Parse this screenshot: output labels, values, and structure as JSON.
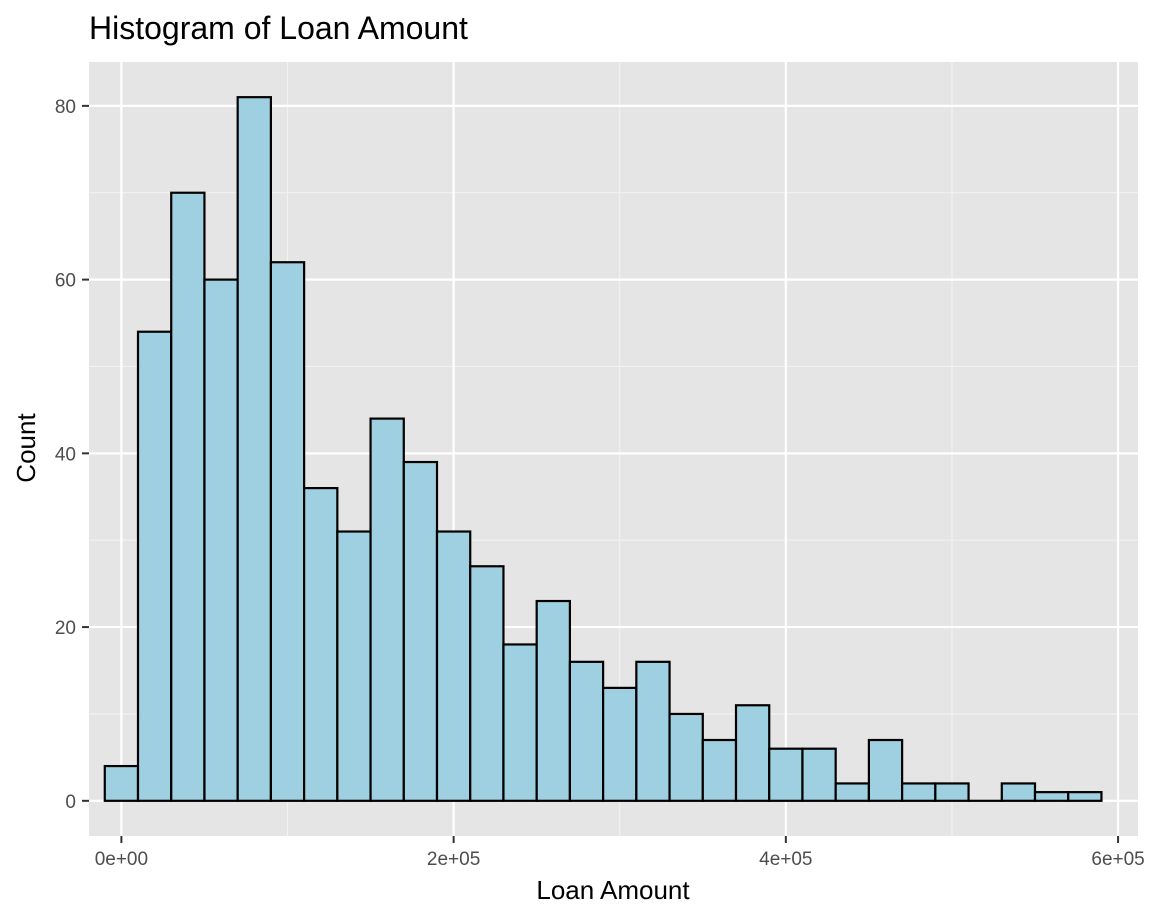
{
  "chart_data": {
    "type": "bar",
    "title": "Histogram of Loan Amount",
    "xlabel": "Loan Amount",
    "ylabel": "Count",
    "xlim": [
      -19500,
      612000
    ],
    "ylim": [
      -4.05,
      85.05
    ],
    "x_ticks": [
      {
        "value": 0,
        "label": "0e+00"
      },
      {
        "value": 200000,
        "label": "2e+05"
      },
      {
        "value": 400000,
        "label": "4e+05"
      },
      {
        "value": 600000,
        "label": "6e+05"
      }
    ],
    "y_ticks": [
      {
        "value": 0,
        "label": "0"
      },
      {
        "value": 20,
        "label": "20"
      },
      {
        "value": 40,
        "label": "40"
      },
      {
        "value": 60,
        "label": "60"
      },
      {
        "value": 80,
        "label": "80"
      }
    ],
    "x_minor_ticks": [
      100000,
      300000,
      500000
    ],
    "y_minor_ticks": [
      10,
      30,
      50,
      70
    ],
    "bin_width": 20000,
    "bins": [
      {
        "start": -10000,
        "end": 10000,
        "count": 4
      },
      {
        "start": 10000,
        "end": 30000,
        "count": 54
      },
      {
        "start": 30000,
        "end": 50000,
        "count": 70
      },
      {
        "start": 50000,
        "end": 70000,
        "count": 60
      },
      {
        "start": 70000,
        "end": 90000,
        "count": 81
      },
      {
        "start": 90000,
        "end": 110000,
        "count": 62
      },
      {
        "start": 110000,
        "end": 130000,
        "count": 36
      },
      {
        "start": 130000,
        "end": 150000,
        "count": 31
      },
      {
        "start": 150000,
        "end": 170000,
        "count": 44
      },
      {
        "start": 170000,
        "end": 190000,
        "count": 39
      },
      {
        "start": 190000,
        "end": 210000,
        "count": 31
      },
      {
        "start": 210000,
        "end": 230000,
        "count": 27
      },
      {
        "start": 230000,
        "end": 250000,
        "count": 18
      },
      {
        "start": 250000,
        "end": 270000,
        "count": 23
      },
      {
        "start": 270000,
        "end": 290000,
        "count": 16
      },
      {
        "start": 290000,
        "end": 310000,
        "count": 13
      },
      {
        "start": 310000,
        "end": 330000,
        "count": 16
      },
      {
        "start": 330000,
        "end": 350000,
        "count": 10
      },
      {
        "start": 350000,
        "end": 370000,
        "count": 7
      },
      {
        "start": 370000,
        "end": 390000,
        "count": 11
      },
      {
        "start": 390000,
        "end": 410000,
        "count": 6
      },
      {
        "start": 410000,
        "end": 430000,
        "count": 6
      },
      {
        "start": 430000,
        "end": 450000,
        "count": 2
      },
      {
        "start": 450000,
        "end": 470000,
        "count": 7
      },
      {
        "start": 470000,
        "end": 490000,
        "count": 2
      },
      {
        "start": 490000,
        "end": 510000,
        "count": 2
      },
      {
        "start": 510000,
        "end": 530000,
        "count": 0
      },
      {
        "start": 530000,
        "end": 550000,
        "count": 2
      },
      {
        "start": 550000,
        "end": 570000,
        "count": 1
      },
      {
        "start": 570000,
        "end": 590000,
        "count": 1
      }
    ],
    "grid": true,
    "colors": {
      "panel_background": "#e5e5e5",
      "grid_major": "#ffffff",
      "grid_minor": "#f2f2f2",
      "bar_fill": "#9fd0e1",
      "bar_stroke": "#000000",
      "tick_text": "#4d4d4d",
      "tick_mark": "#333333"
    }
  }
}
